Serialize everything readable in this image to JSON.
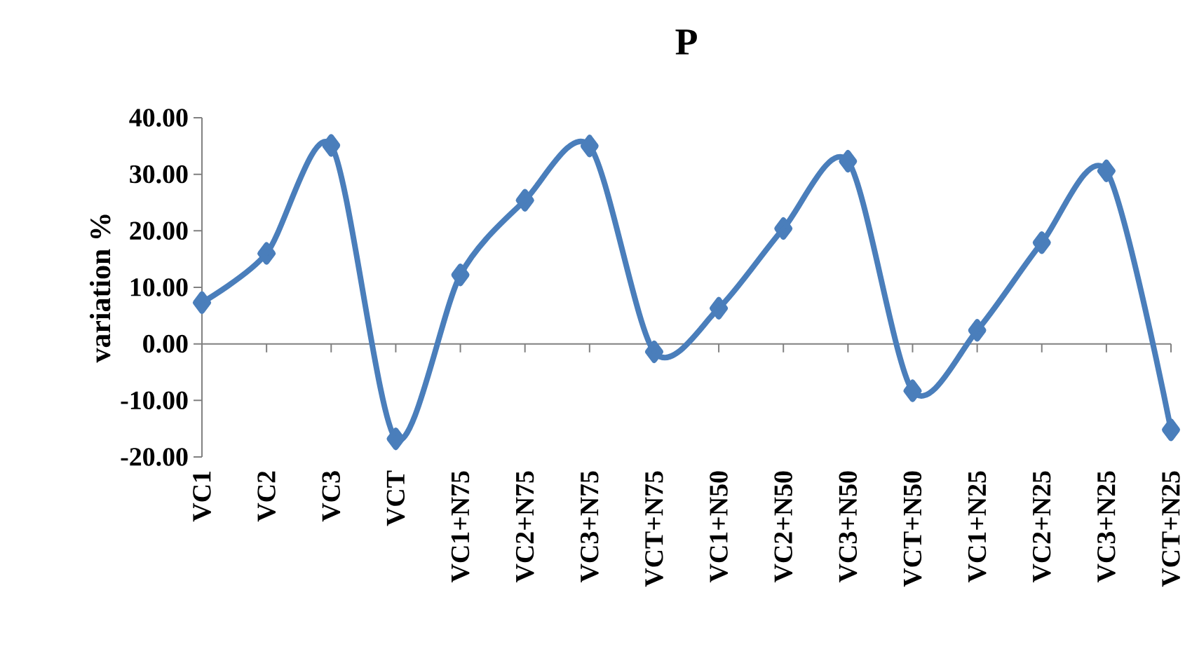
{
  "chart_data": {
    "type": "line",
    "title": "P",
    "ylabel": "variation  %",
    "categories": [
      "VC1",
      "VC2",
      "VC3",
      "VCT",
      "VC1+N75",
      "VC2+N75",
      "VC3+N75",
      "VCT+N75",
      "VC1+N50",
      "VC2+N50",
      "VC3+N50",
      "VCT+N50",
      "VC1+N25",
      "VC2+N25",
      "VC3+N25",
      "VCT+N25"
    ],
    "series": [
      {
        "color": "#4a7ebb",
        "values": [
          7.3,
          16.0,
          35.1,
          -16.8,
          12.2,
          25.4,
          35.0,
          -1.4,
          6.3,
          20.4,
          32.3,
          -8.3,
          2.4,
          17.9,
          30.6,
          -15.2
        ]
      }
    ],
    "ylim": [
      -20,
      40
    ],
    "yticks": [
      {
        "value": -20,
        "label": "-20.00"
      },
      {
        "value": -10,
        "label": "-10.00"
      },
      {
        "value": 0,
        "label": "0.00"
      },
      {
        "value": 10,
        "label": "10.00"
      },
      {
        "value": 20,
        "label": "20.00"
      },
      {
        "value": 30,
        "label": "30.00"
      },
      {
        "value": 40,
        "label": "40.00"
      }
    ],
    "marker": "diamond",
    "line_style": "solid"
  }
}
